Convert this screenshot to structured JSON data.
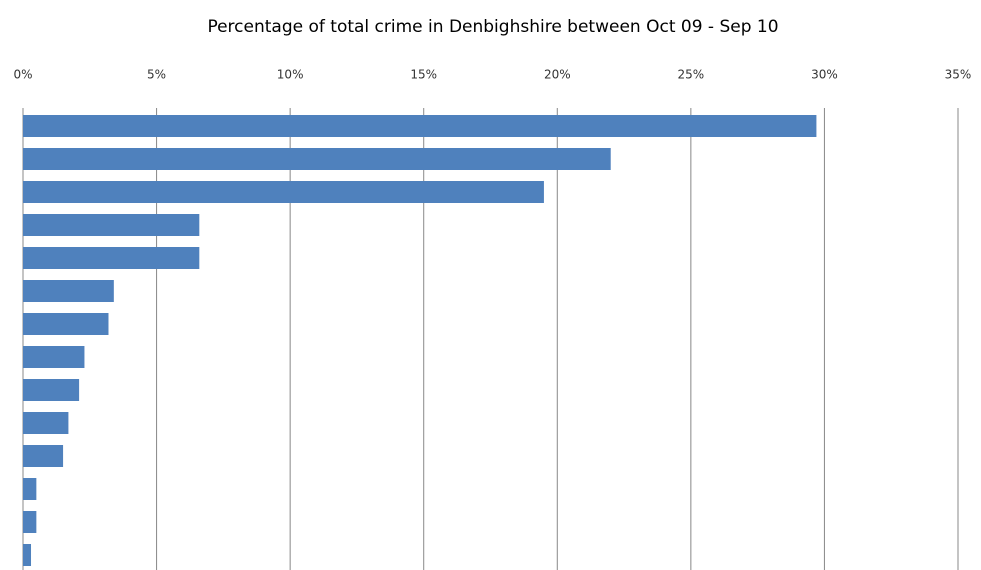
{
  "chart_data": {
    "type": "bar",
    "orientation": "horizontal",
    "title": "Percentage of total crime in Denbighshire between Oct 09 - Sep 10",
    "categories": [
      null,
      null,
      null,
      null,
      null,
      null,
      null,
      null,
      null,
      null,
      null,
      null,
      null,
      null
    ],
    "values": [
      29.7,
      22.0,
      19.5,
      6.6,
      6.6,
      3.4,
      3.2,
      2.3,
      2.1,
      1.7,
      1.5,
      0.5,
      0.5,
      0.3
    ],
    "color": "#4f81bd",
    "xlim": [
      0,
      35
    ],
    "xticks": [
      {
        "value": 0,
        "label": "0%"
      },
      {
        "value": 5,
        "label": "5%"
      },
      {
        "value": 10,
        "label": "10%"
      },
      {
        "value": 15,
        "label": "15%"
      },
      {
        "value": 20,
        "label": "20%"
      },
      {
        "value": 25,
        "label": "25%"
      },
      {
        "value": 30,
        "label": "30%"
      },
      {
        "value": 35,
        "label": "35%"
      }
    ],
    "grid": true
  }
}
